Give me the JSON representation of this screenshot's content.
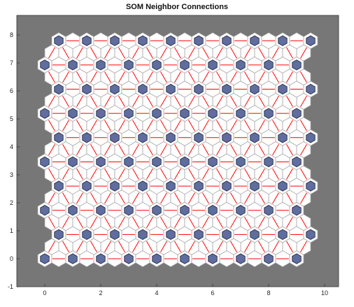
{
  "chart_data": {
    "type": "scatter",
    "title": "SOM Neighbor Connections",
    "xlabel": "",
    "ylabel": "",
    "xlim": [
      -1,
      10.5
    ],
    "ylim": [
      -1,
      8.7
    ],
    "xticks": [
      "0",
      "2",
      "4",
      "6",
      "8",
      "10"
    ],
    "yticks": [
      "-1",
      "0",
      "1",
      "2",
      "3",
      "4",
      "5",
      "6",
      "7",
      "8"
    ],
    "grid": {
      "rows": 10,
      "cols": 10,
      "topology": "hexagonal",
      "row_spacing": 0.866,
      "odd_row_offset": 0.5,
      "neuron_hex_radius": 0.18,
      "background_hex_radius": 0.5
    },
    "series": [
      {
        "values": "neurons at positions of a 10x10 hexagonal SOM grid"
      }
    ],
    "connection_value_range": [
      0,
      1
    ]
  },
  "colors": {
    "plot_background": "#777777",
    "cell_fill": "#ffffff",
    "cell_edge": "#a0a0a0",
    "neuron_fill": "#5f6d9f",
    "neuron_edge": "#1a1f3a",
    "connection_line": "#ff0000"
  }
}
